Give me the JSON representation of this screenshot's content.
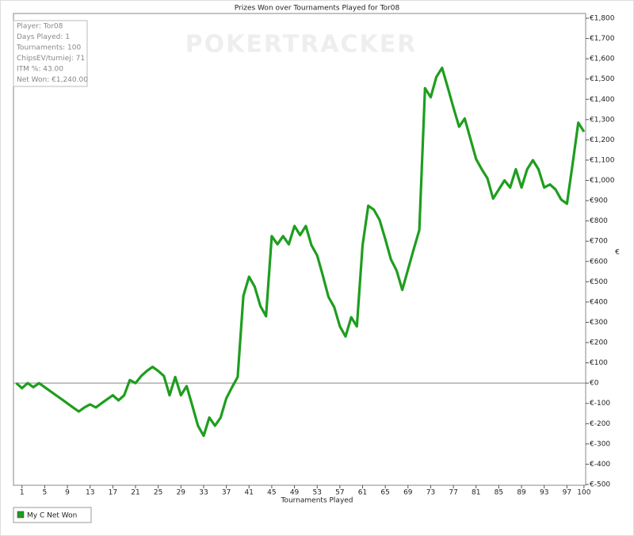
{
  "chart_data": {
    "type": "line",
    "title": "Prizes Won over Tournaments Played for Tor08",
    "watermark": "POKERTRACKER",
    "info": [
      "Player: Tor08",
      "Days Played: 1",
      "Tournaments: 100",
      "ChipsEV/turniej: 71",
      "ITM %: 43.00",
      "Net Won: €1,240.00"
    ],
    "x_label": "Tournaments Played",
    "y_label": "€",
    "x": [
      0,
      1,
      2,
      3,
      4,
      5,
      6,
      7,
      8,
      9,
      10,
      11,
      12,
      13,
      14,
      15,
      16,
      17,
      18,
      19,
      20,
      21,
      22,
      23,
      24,
      25,
      26,
      27,
      28,
      29,
      30,
      31,
      32,
      33,
      34,
      35,
      36,
      37,
      38,
      39,
      40,
      41,
      42,
      43,
      44,
      45,
      46,
      47,
      48,
      49,
      50,
      51,
      52,
      53,
      54,
      55,
      56,
      57,
      58,
      59,
      60,
      61,
      62,
      63,
      64,
      65,
      66,
      67,
      68,
      69,
      70,
      71,
      72,
      73,
      74,
      75,
      76,
      77,
      78,
      79,
      80,
      81,
      82,
      83,
      84,
      85,
      86,
      87,
      88,
      89,
      90,
      91,
      92,
      93,
      94,
      95,
      96,
      97,
      98,
      99,
      100
    ],
    "series": [
      {
        "name": "My C Net Won",
        "color": "#1e9e1e",
        "values": [
          0,
          -25,
          0,
          -20,
          0,
          -20,
          -40,
          -60,
          -80,
          -100,
          -120,
          -140,
          -120,
          -105,
          -120,
          -100,
          -80,
          -60,
          -85,
          -60,
          15,
          0,
          35,
          60,
          80,
          60,
          35,
          -60,
          30,
          -60,
          -15,
          -110,
          -210,
          -260,
          -170,
          -210,
          -170,
          -75,
          -20,
          30,
          430,
          525,
          475,
          380,
          330,
          725,
          685,
          725,
          685,
          775,
          730,
          775,
          680,
          630,
          530,
          425,
          375,
          280,
          230,
          325,
          280,
          680,
          875,
          855,
          805,
          710,
          610,
          555,
          460,
          560,
          660,
          755,
          1455,
          1410,
          1510,
          1555,
          1460,
          1360,
          1265,
          1305,
          1205,
          1105,
          1055,
          1010,
          910,
          955,
          1000,
          965,
          1055,
          965,
          1055,
          1100,
          1055,
          965,
          980,
          955,
          905,
          885,
          1080,
          1285,
          1240
        ]
      }
    ],
    "xlim": [
      -0.5,
      100.3
    ],
    "xticks": [
      1,
      5,
      9,
      13,
      17,
      21,
      25,
      29,
      33,
      37,
      41,
      45,
      49,
      53,
      57,
      61,
      65,
      69,
      73,
      77,
      81,
      85,
      89,
      93,
      97,
      100
    ],
    "ylim": [
      -500,
      1800
    ],
    "yticks": [
      {
        "value": -500,
        "label": "€-500"
      },
      {
        "value": -400,
        "label": "€-400"
      },
      {
        "value": -300,
        "label": "€-300"
      },
      {
        "value": -200,
        "label": "€-200"
      },
      {
        "value": -100,
        "label": "€-100"
      },
      {
        "value": 0,
        "label": "€0"
      },
      {
        "value": 100,
        "label": "€100"
      },
      {
        "value": 200,
        "label": "€200"
      },
      {
        "value": 300,
        "label": "€300"
      },
      {
        "value": 400,
        "label": "€400"
      },
      {
        "value": 500,
        "label": "€500"
      },
      {
        "value": 600,
        "label": "€600"
      },
      {
        "value": 700,
        "label": "€700"
      },
      {
        "value": 800,
        "label": "€800"
      },
      {
        "value": 900,
        "label": "€900"
      },
      {
        "value": 1000,
        "label": "€1,000"
      },
      {
        "value": 1100,
        "label": "€1,100"
      },
      {
        "value": 1200,
        "label": "€1,200"
      },
      {
        "value": 1300,
        "label": "€1,300"
      },
      {
        "value": 1400,
        "label": "€1,400"
      },
      {
        "value": 1500,
        "label": "€1,500"
      },
      {
        "value": 1600,
        "label": "€1,600"
      },
      {
        "value": 1700,
        "label": "€1,700"
      },
      {
        "value": 1800,
        "label": "€1,800"
      }
    ],
    "zero_line": true
  }
}
